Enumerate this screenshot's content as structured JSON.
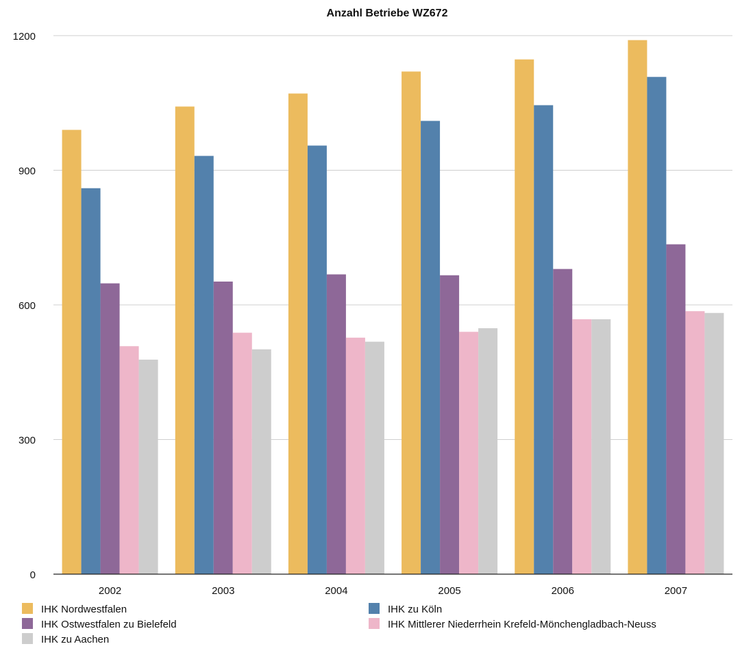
{
  "chart_data": {
    "type": "bar",
    "title": "Anzahl Betriebe WZ672",
    "xlabel": "",
    "ylabel": "",
    "categories": [
      "2002",
      "2003",
      "2004",
      "2005",
      "2006",
      "2007"
    ],
    "ylim": [
      0,
      1200
    ],
    "yticks": [
      0,
      300,
      600,
      900,
      1200
    ],
    "grid": true,
    "legend_position": "bottom",
    "series": [
      {
        "name": "IHK Nordwestfalen",
        "color": "#ECBB5E",
        "values": [
          990,
          1042,
          1071,
          1120,
          1147,
          1190
        ]
      },
      {
        "name": "IHK zu Köln",
        "color": "#5381AC",
        "values": [
          860,
          932,
          955,
          1010,
          1045,
          1108
        ]
      },
      {
        "name": "IHK Ostwestfalen zu Bielefeld",
        "color": "#8E6898",
        "values": [
          648,
          652,
          668,
          666,
          680,
          735
        ]
      },
      {
        "name": "IHK Mittlerer Niederrhein Krefeld-Mönchengladbach-Neuss",
        "color": "#EEB6C9",
        "values": [
          508,
          538,
          527,
          540,
          568,
          586
        ]
      },
      {
        "name": "IHK zu Aachen",
        "color": "#CDCDCD",
        "values": [
          478,
          501,
          518,
          548,
          568,
          582
        ]
      }
    ]
  }
}
